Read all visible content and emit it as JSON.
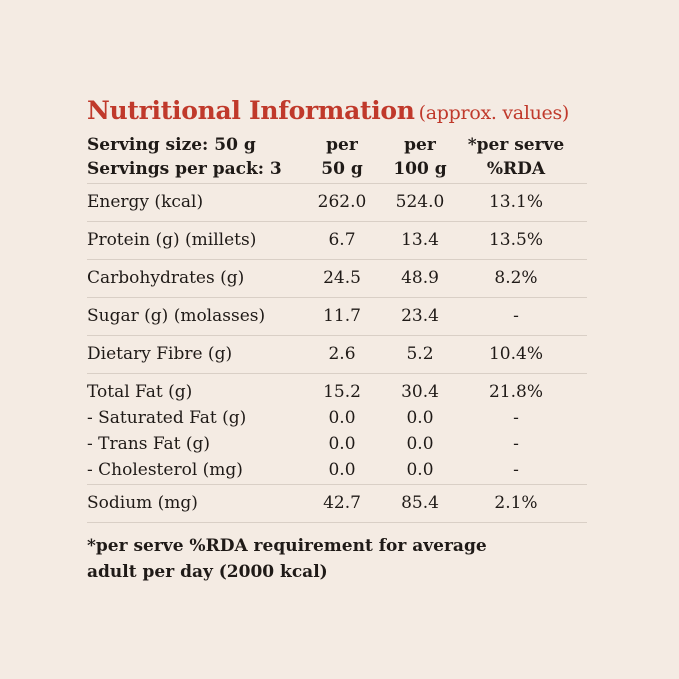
{
  "title": "Nutritional Information",
  "subtitle": "(approx. values)",
  "header": {
    "serving_size": "Serving size: 50 g",
    "servings_per_pack": "Servings per pack: 3",
    "col1": [
      "per",
      "50 g"
    ],
    "col2": [
      "per",
      "100 g"
    ],
    "col3": [
      "*per serve",
      "%RDA"
    ]
  },
  "rows": [
    {
      "label": "Energy (kcal)",
      "per50": "262.0",
      "per100": "524.0",
      "rda": "13.1%"
    },
    {
      "label": "Protein (g) (millets)",
      "per50": "6.7",
      "per100": "13.4",
      "rda": "13.5%"
    },
    {
      "label": "Carbohydrates (g)",
      "per50": "24.5",
      "per100": "48.9",
      "rda": "8.2%"
    },
    {
      "label": "Sugar (g) (molasses)",
      "per50": "11.7",
      "per100": "23.4",
      "rda": "-"
    },
    {
      "label": "Dietary Fibre (g)",
      "per50": "2.6",
      "per100": "5.2",
      "rda": "10.4%"
    }
  ],
  "fat_group": [
    {
      "label": "Total Fat (g)",
      "per50": "15.2",
      "per100": "30.4",
      "rda": "21.8%"
    },
    {
      "label": "- Saturated Fat (g)",
      "per50": "0.0",
      "per100": "0.0",
      "rda": "-"
    },
    {
      "label": "- Trans Fat (g)",
      "per50": "0.0",
      "per100": "0.0",
      "rda": "-"
    },
    {
      "label": "- Cholesterol (mg)",
      "per50": "0.0",
      "per100": "0.0",
      "rda": "-"
    }
  ],
  "sodium": {
    "label": "Sodium (mg)",
    "per50": "42.7",
    "per100": "85.4",
    "rda": "2.1%"
  },
  "footnote": [
    "*per serve %RDA requirement for average",
    "adult per day (2000 kcal)"
  ]
}
